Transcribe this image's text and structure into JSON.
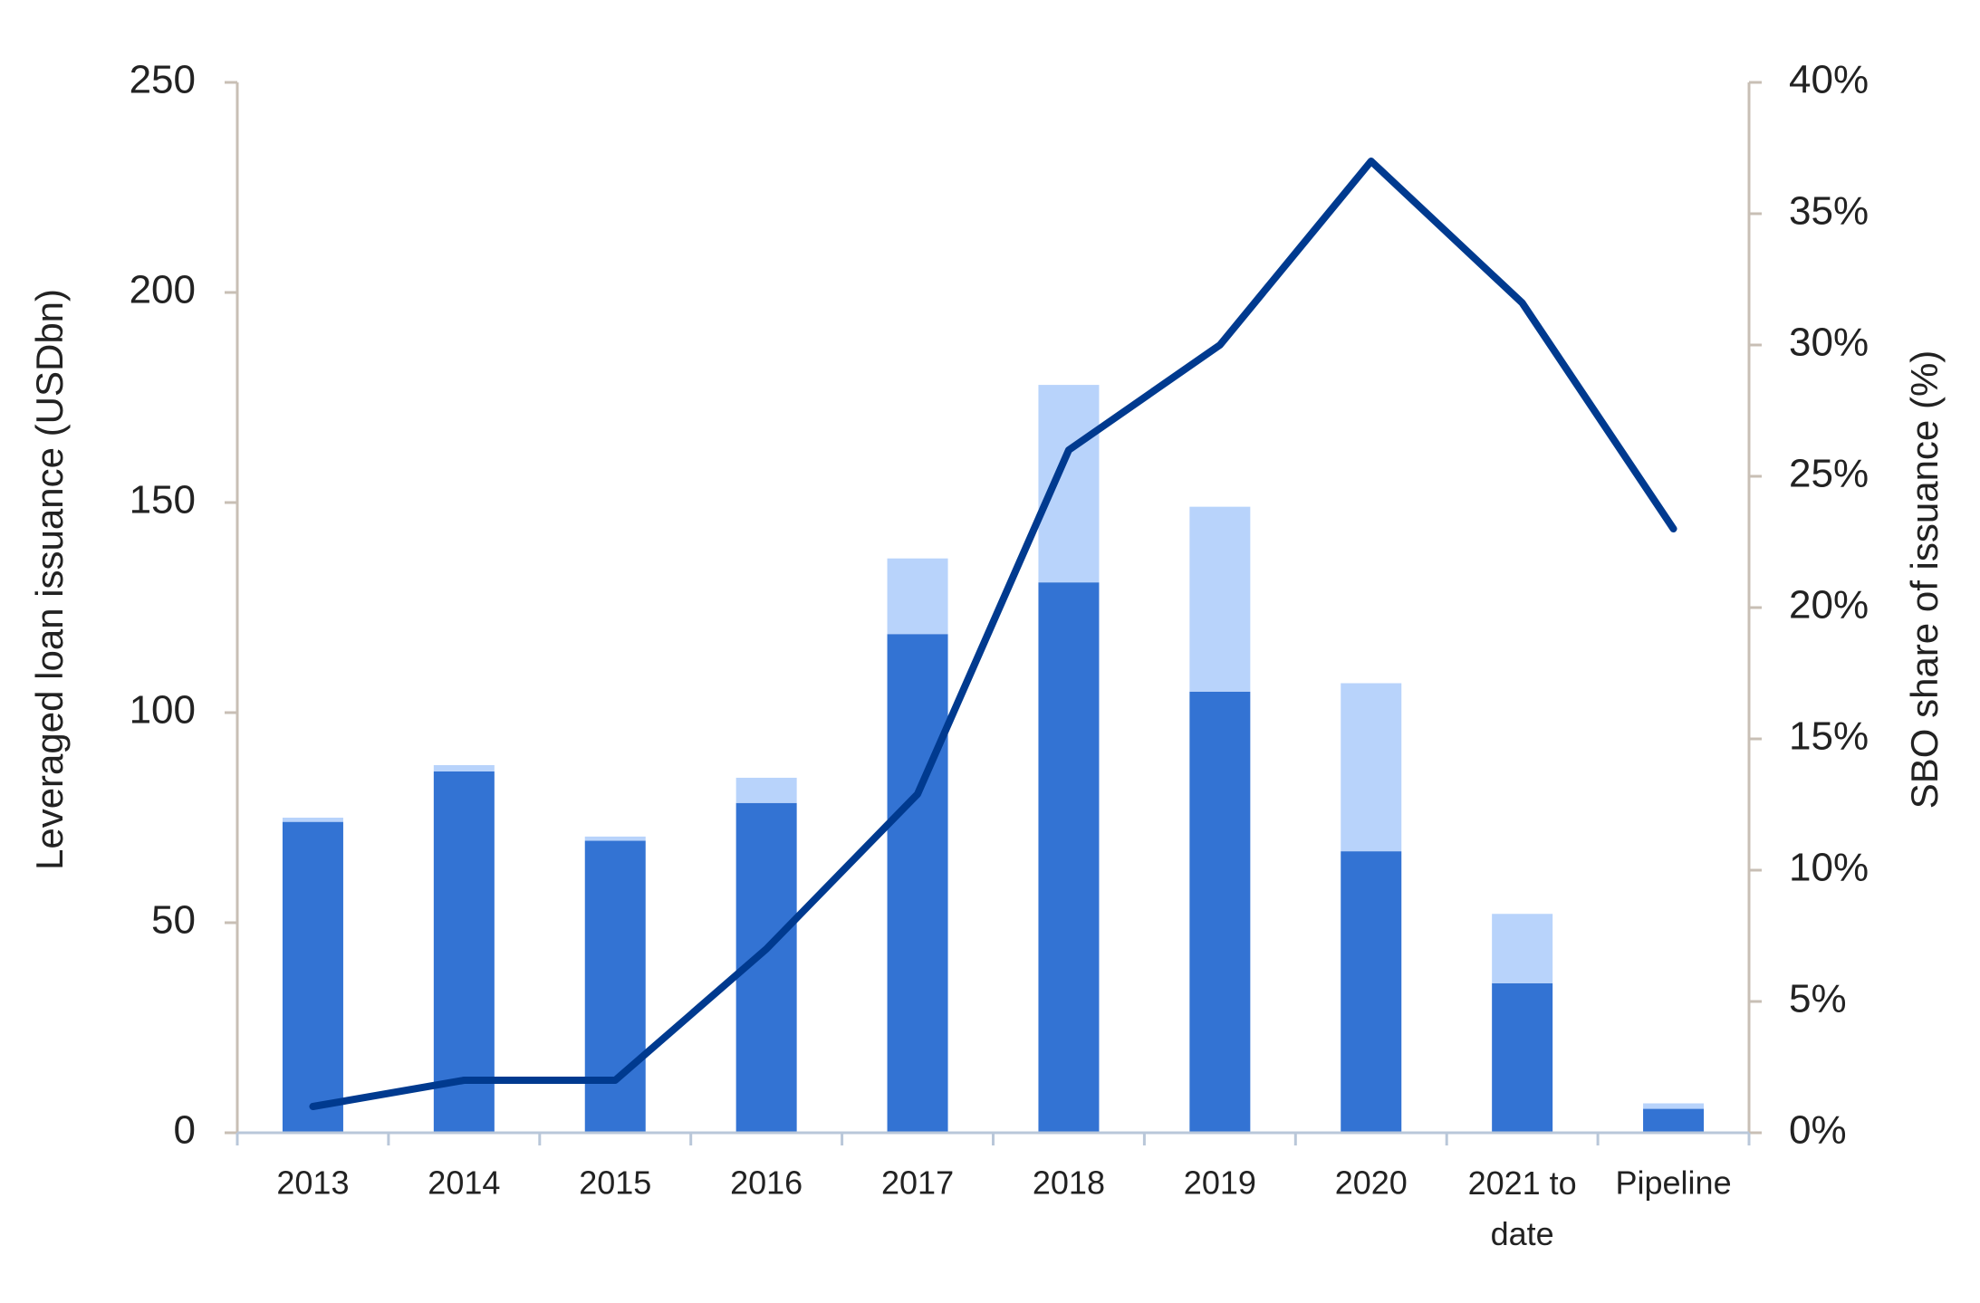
{
  "chart_data": {
    "type": "bar-line",
    "y_label": "Leveraged loan issuance (USDbn)",
    "y2_label": "SBO share of issuance (%)",
    "categories": [
      "2013",
      "2014",
      "2015",
      "2016",
      "2017",
      "2018",
      "2019",
      "2020",
      "2021 to date",
      "Pipeline"
    ],
    "series": [
      {
        "type": "bar",
        "color": "#3373d3",
        "values": [
          74,
          86,
          69.5,
          78.5,
          118.7,
          131,
          105,
          67,
          35.6,
          5.7
        ]
      },
      {
        "type": "bar",
        "color": "#b8d3fb",
        "values": [
          1,
          1.5,
          1,
          6,
          18,
          47,
          44,
          40,
          16.5,
          1.3
        ]
      },
      {
        "type": "line",
        "axis": "y2",
        "color": "#003a8f",
        "values": [
          1,
          2,
          2,
          7,
          12.9,
          26,
          30,
          37,
          31.6,
          23
        ]
      }
    ],
    "ylim": [
      0,
      250
    ],
    "yticks": [
      0,
      50,
      100,
      150,
      200,
      250
    ],
    "y2lim": [
      0,
      40
    ],
    "y2ticks": [
      {
        "value": 0,
        "label": "0%"
      },
      {
        "value": 5,
        "label": "5%"
      },
      {
        "value": 10,
        "label": "10%"
      },
      {
        "value": 15,
        "label": "15%"
      },
      {
        "value": 20,
        "label": "20%"
      },
      {
        "value": 25,
        "label": "25%"
      },
      {
        "value": 30,
        "label": "30%"
      },
      {
        "value": 35,
        "label": "35%"
      },
      {
        "value": 40,
        "label": "40%"
      }
    ],
    "stacked": true,
    "grid": false
  }
}
